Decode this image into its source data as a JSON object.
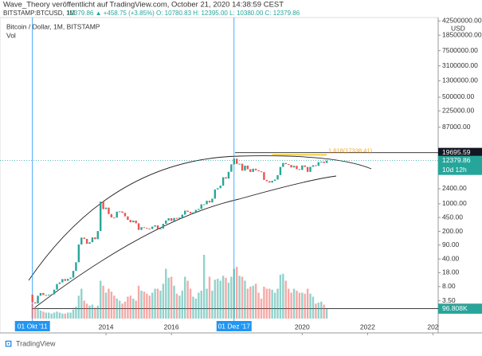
{
  "header": {
    "title": "Wave_Theory veröffentlicht auf TradingView.com, October 21, 2020 14:38:59 CEST",
    "symbol": "BITSTAMP:BTCUSD, 1M",
    "quote": "12379.86 ▲ +458.75 (+3.85%) O: 10780.83 H: 12395.00 L: 10380.00 C: 12379.86"
  },
  "footer": {
    "brand": "TradingView"
  },
  "chart_data": {
    "type": "candlestick",
    "legend": "Bitcoin / Dollar, 1M, BITSTAMP",
    "volume_title": "Vol",
    "unit": "USD",
    "log_scale": true,
    "up_color": "#26a69a",
    "down_color": "#ef5350",
    "x": [
      "2011-10",
      "2011-11",
      "2011-12",
      "2012-01",
      "2012-02",
      "2012-03",
      "2012-04",
      "2012-05",
      "2012-06",
      "2012-07",
      "2012-08",
      "2012-09",
      "2012-10",
      "2012-11",
      "2012-12",
      "2013-01",
      "2013-02",
      "2013-03",
      "2013-04",
      "2013-05",
      "2013-06",
      "2013-07",
      "2013-08",
      "2013-09",
      "2013-10",
      "2013-11",
      "2013-12",
      "2014-01",
      "2014-02",
      "2014-03",
      "2014-04",
      "2014-05",
      "2014-06",
      "2014-07",
      "2014-08",
      "2014-09",
      "2014-10",
      "2014-11",
      "2014-12",
      "2015-01",
      "2015-02",
      "2015-03",
      "2015-04",
      "2015-05",
      "2015-06",
      "2015-07",
      "2015-08",
      "2015-09",
      "2015-10",
      "2015-11",
      "2015-12",
      "2016-01",
      "2016-02",
      "2016-03",
      "2016-04",
      "2016-05",
      "2016-06",
      "2016-07",
      "2016-08",
      "2016-09",
      "2016-10",
      "2016-11",
      "2016-12",
      "2017-01",
      "2017-02",
      "2017-03",
      "2017-04",
      "2017-05",
      "2017-06",
      "2017-07",
      "2017-08",
      "2017-09",
      "2017-10",
      "2017-11",
      "2017-12",
      "2018-01",
      "2018-02",
      "2018-03",
      "2018-04",
      "2018-05",
      "2018-06",
      "2018-07",
      "2018-08",
      "2018-09",
      "2018-10",
      "2018-11",
      "2018-12",
      "2019-01",
      "2019-02",
      "2019-03",
      "2019-04",
      "2019-05",
      "2019-06",
      "2019-07",
      "2019-08",
      "2019-09",
      "2019-10",
      "2019-11",
      "2019-12",
      "2020-01",
      "2020-02",
      "2020-03",
      "2020-04",
      "2020-05",
      "2020-06",
      "2020-07",
      "2020-08",
      "2020-09",
      "2020-10"
    ],
    "first_open": 5.0,
    "close": [
      3.2,
      3.0,
      4.7,
      5.5,
      4.9,
      4.9,
      5.0,
      5.1,
      6.7,
      9.3,
      10.2,
      12.4,
      11.2,
      12.6,
      13.5,
      20,
      33,
      93,
      139,
      129,
      97,
      106,
      141,
      127,
      204,
      1130,
      730,
      800,
      550,
      450,
      445,
      630,
      640,
      590,
      480,
      390,
      340,
      375,
      320,
      218,
      255,
      245,
      236,
      230,
      264,
      284,
      230,
      236,
      311,
      377,
      430,
      368,
      437,
      416,
      448,
      531,
      670,
      624,
      573,
      608,
      700,
      742,
      966,
      970,
      1190,
      1080,
      1350,
      2300,
      2480,
      2870,
      4700,
      4340,
      6450,
      9950,
      13850,
      10200,
      10300,
      6900,
      9240,
      7500,
      6400,
      7730,
      7030,
      6630,
      6320,
      4020,
      3740,
      3440,
      3810,
      4100,
      5320,
      8550,
      10800,
      10080,
      9600,
      8300,
      9150,
      7550,
      7190,
      9350,
      8550,
      6410,
      8620,
      9450,
      9140,
      11350,
      11650,
      10780,
      12379.86
    ],
    "volume": [
      150000,
      120000,
      110000,
      80000,
      70000,
      60000,
      60000,
      50000,
      60000,
      70000,
      60000,
      50000,
      50000,
      60000,
      60000,
      90000,
      120000,
      230000,
      300000,
      180000,
      150000,
      130000,
      140000,
      110000,
      130000,
      380000,
      330000,
      260000,
      300000,
      270000,
      230000,
      200000,
      180000,
      150000,
      170000,
      220000,
      230000,
      200000,
      180000,
      330000,
      280000,
      270000,
      250000,
      230000,
      260000,
      300000,
      300000,
      280000,
      350000,
      500000,
      410000,
      420000,
      330000,
      250000,
      230000,
      280000,
      420000,
      380000,
      300000,
      220000,
      200000,
      260000,
      280000,
      640000,
      300000,
      420000,
      280000,
      390000,
      400000,
      380000,
      430000,
      410000,
      360000,
      420000,
      500000,
      520000,
      430000,
      420000,
      380000,
      300000,
      320000,
      330000,
      350000,
      260000,
      200000,
      320000,
      300000,
      300000,
      290000,
      260000,
      300000,
      440000,
      450000,
      380000,
      300000,
      260000,
      300000,
      280000,
      260000,
      260000,
      250000,
      300000,
      250000,
      220000,
      150000,
      160000,
      170000,
      140000,
      96808
    ],
    "volume_label": "96.808K",
    "vlim": [
      0,
      800000
    ],
    "ylim": [
      1.24,
      51900000
    ],
    "yticks": [
      {
        "value": 42500000,
        "label": "42500000.00"
      },
      {
        "value": 18500000,
        "label": "18500000.00"
      },
      {
        "value": 7500000,
        "label": "7500000.00"
      },
      {
        "value": 3100000,
        "label": "3100000.00"
      },
      {
        "value": 1300000,
        "label": "1300000.00"
      },
      {
        "value": 500000,
        "label": "500000.00"
      },
      {
        "value": 225000,
        "label": "225000.00"
      },
      {
        "value": 87000,
        "label": "87000.00"
      },
      {
        "value": 2400,
        "label": "2400.00"
      },
      {
        "value": 1000,
        "label": "1000.00"
      },
      {
        "value": 450,
        "label": "450.00"
      },
      {
        "value": 200,
        "label": "200.00"
      },
      {
        "value": 90,
        "label": "90.00"
      },
      {
        "value": 40,
        "label": "40.00"
      },
      {
        "value": 18,
        "label": "18.00"
      },
      {
        "value": 8,
        "label": "8.00"
      },
      {
        "value": 3.5,
        "label": "3.50"
      }
    ],
    "xticks": [
      {
        "value": "2014-01",
        "label": "2014"
      },
      {
        "value": "2016-01",
        "label": "2016"
      },
      {
        "value": "2020-01",
        "label": "2020"
      },
      {
        "value": "2022-01",
        "label": "2022"
      },
      {
        "value": "2024-01",
        "label": "202"
      }
    ],
    "markers": [
      {
        "x": "2011-10",
        "label": "01 Okt '11"
      },
      {
        "x": "2017-12",
        "label": "01 Dez '17"
      }
    ],
    "hlines": [
      19695.59,
      2.21
    ],
    "last_price": 12379.86,
    "countdown": "10d 12h",
    "fib": {
      "value": 17338.41,
      "label": "1.618(17338.41)",
      "x_range": [
        "2019-02",
        "2020-10"
      ]
    }
  }
}
